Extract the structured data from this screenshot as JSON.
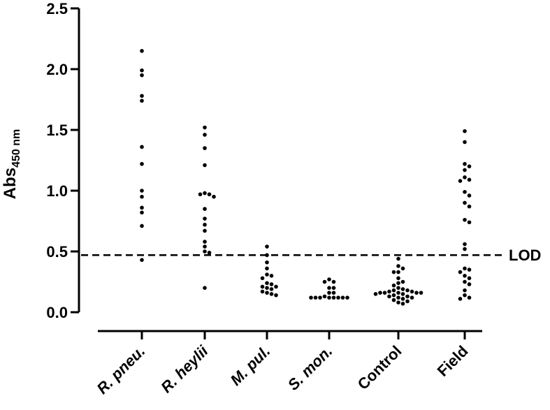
{
  "chart_data": {
    "type": "scatter",
    "title": "",
    "xlabel": "",
    "ylabel": {
      "main": "Abs",
      "subscript": "450 nm"
    },
    "ylim": [
      0,
      2.5
    ],
    "yticks": [
      "0.0",
      "0.5",
      "1.0",
      "1.5",
      "2.0",
      "2.5"
    ],
    "grid": false,
    "legend": "none",
    "categories": [
      {
        "label": "R. pneu.",
        "italic": true
      },
      {
        "label": "R. heylii",
        "italic": true
      },
      {
        "label": "M. pul.",
        "italic": true
      },
      {
        "label": "S. mon.",
        "italic": true
      },
      {
        "label": "Control",
        "italic": false
      },
      {
        "label": "Field",
        "italic": false
      }
    ],
    "series": [
      {
        "category": "R. pneu.",
        "values": [
          2.15,
          1.99,
          1.95,
          1.78,
          1.74,
          1.36,
          1.22,
          1.0,
          0.95,
          0.86,
          0.82,
          0.71,
          0.43
        ]
      },
      {
        "category": "R. heylii",
        "values": [
          1.52,
          1.46,
          1.35,
          1.21,
          0.98,
          0.97,
          0.97,
          0.95,
          0.85,
          0.77,
          0.72,
          0.67,
          0.58,
          0.54,
          0.5,
          0.49,
          0.2
        ]
      },
      {
        "category": "M. pul.",
        "values": [
          0.54,
          0.47,
          0.41,
          0.36,
          0.31,
          0.3,
          0.28,
          0.24,
          0.23,
          0.21,
          0.21,
          0.2,
          0.19,
          0.17,
          0.16,
          0.15,
          0.14
        ]
      },
      {
        "category": "S. mon.",
        "values": [
          0.27,
          0.25,
          0.25,
          0.2,
          0.2,
          0.16,
          0.16,
          0.13,
          0.12,
          0.12,
          0.12,
          0.12,
          0.12,
          0.12,
          0.12,
          0.12
        ]
      },
      {
        "category": "Control",
        "values": [
          0.44,
          0.38,
          0.36,
          0.33,
          0.33,
          0.28,
          0.25,
          0.24,
          0.22,
          0.2,
          0.19,
          0.18,
          0.18,
          0.17,
          0.17,
          0.16,
          0.16,
          0.16,
          0.16,
          0.16,
          0.15,
          0.15,
          0.14,
          0.13,
          0.13,
          0.12,
          0.12,
          0.11,
          0.1,
          0.09,
          0.08,
          0.07
        ]
      },
      {
        "category": "Field",
        "values": [
          1.49,
          1.4,
          1.22,
          1.2,
          1.17,
          1.11,
          1.09,
          1.08,
          0.99,
          0.96,
          0.9,
          0.87,
          0.76,
          0.74,
          0.56,
          0.52,
          0.36,
          0.35,
          0.33,
          0.3,
          0.28,
          0.25,
          0.23,
          0.18,
          0.14,
          0.12,
          0.11
        ]
      }
    ],
    "reference_line": {
      "value": 0.47,
      "label": "LOD"
    }
  }
}
